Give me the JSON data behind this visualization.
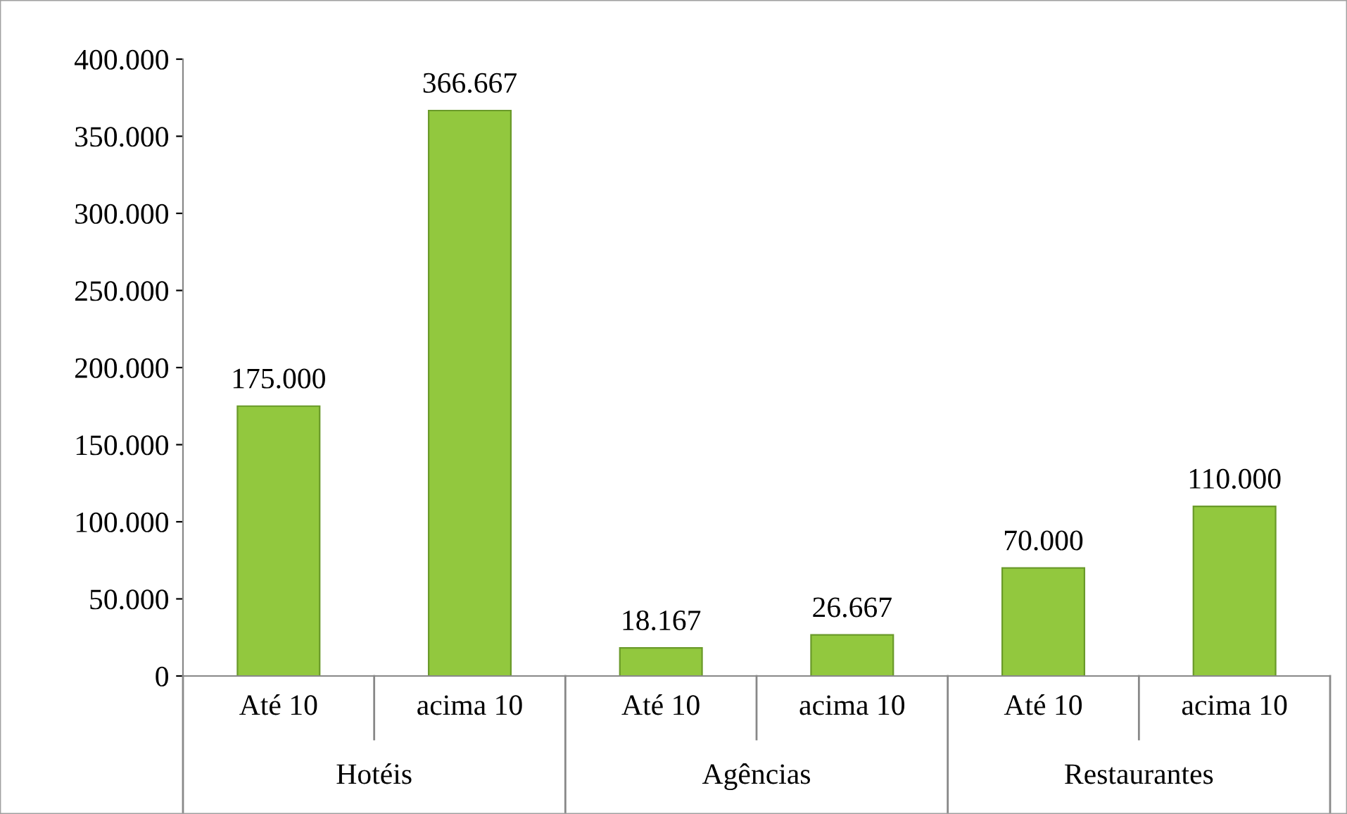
{
  "chart_data": {
    "type": "bar",
    "categories": [
      "Até 10",
      "acima 10",
      "Até 10",
      "acima 10",
      "Até 10",
      "acima 10"
    ],
    "values": [
      175000,
      366667,
      18167,
      26667,
      70000,
      110000
    ],
    "value_labels": [
      "175.000",
      "366.667",
      "18.167",
      "26.667",
      "70.000",
      "110.000"
    ],
    "color": "#92c83e",
    "ylim": [
      0,
      400000
    ],
    "yticks": [
      0,
      {
        "value": 50000,
        "label": "50.000"
      },
      {
        "value": 100000,
        "label": "100.000"
      },
      {
        "value": 150000,
        "label": "150.000"
      },
      {
        "value": 200000,
        "label": "200.000"
      },
      {
        "value": 250000,
        "label": "250.000"
      },
      {
        "value": 300000,
        "label": "300.000"
      },
      {
        "value": 350000,
        "label": "350.000"
      },
      {
        "value": 400000,
        "label": "400.000"
      }
    ],
    "annotations": [
      "Hotéis",
      "Agências",
      "Restaurantes"
    ],
    "grid": false,
    "legend": false
  }
}
